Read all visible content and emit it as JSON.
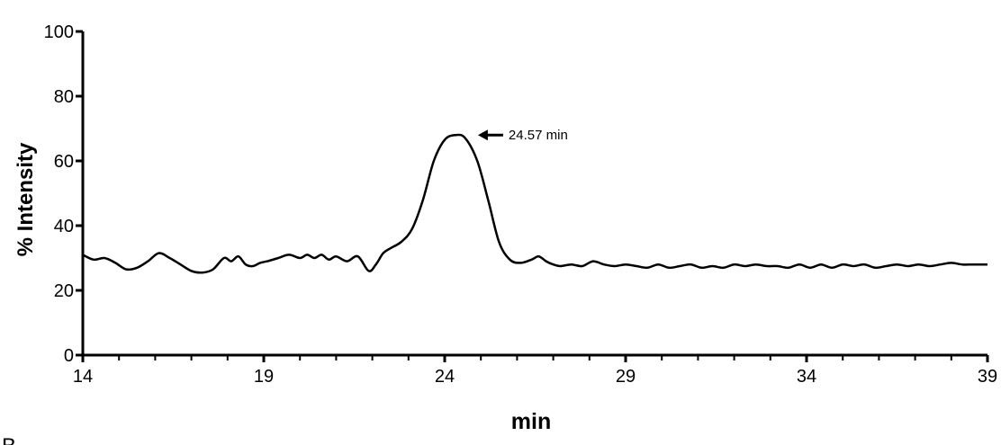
{
  "chart_data": {
    "type": "line",
    "title": "",
    "xlabel": "min",
    "ylabel": "% Intensity",
    "xlim": [
      14,
      39
    ],
    "ylim": [
      0,
      100
    ],
    "grid": false,
    "x_ticks_major": [
      14,
      19,
      24,
      29,
      34,
      39
    ],
    "x_ticks_minor_step": 1,
    "y_ticks": [
      0,
      20,
      40,
      60,
      80,
      100
    ],
    "annotation": {
      "text": "24.57 min",
      "x": 24.57,
      "y": 68
    },
    "series": [
      {
        "color": "#000000",
        "x": [
          14.0,
          14.3,
          14.6,
          14.9,
          15.2,
          15.5,
          15.8,
          16.1,
          16.4,
          16.7,
          17.0,
          17.3,
          17.6,
          17.9,
          18.1,
          18.3,
          18.5,
          18.7,
          18.9,
          19.1,
          19.4,
          19.7,
          20.0,
          20.2,
          20.4,
          20.6,
          20.8,
          21.0,
          21.3,
          21.6,
          21.9,
          22.1,
          22.3,
          22.5,
          22.8,
          23.1,
          23.4,
          23.7,
          24.0,
          24.3,
          24.57,
          24.9,
          25.2,
          25.5,
          25.8,
          26.1,
          26.4,
          26.6,
          26.8,
          27.0,
          27.2,
          27.5,
          27.8,
          28.1,
          28.4,
          28.7,
          29.0,
          29.3,
          29.6,
          29.9,
          30.2,
          30.5,
          30.8,
          31.1,
          31.4,
          31.7,
          32.0,
          32.3,
          32.6,
          32.9,
          33.2,
          33.5,
          33.8,
          34.1,
          34.4,
          34.7,
          35.0,
          35.3,
          35.6,
          35.9,
          36.2,
          36.5,
          36.8,
          37.1,
          37.4,
          37.7,
          38.0,
          38.3,
          38.6,
          39.0
        ],
        "values": [
          31,
          29.5,
          30,
          28.5,
          26.5,
          27,
          29,
          31.5,
          30,
          28,
          26,
          25.5,
          26.5,
          30,
          29,
          30.5,
          28,
          27.5,
          28.5,
          29,
          30,
          31,
          30,
          31,
          30,
          31,
          29.5,
          30.5,
          29,
          30.5,
          26,
          28,
          31.5,
          33,
          35,
          39,
          48,
          60,
          66.5,
          68,
          67,
          60,
          48,
          35,
          29.5,
          28.5,
          29.5,
          30.5,
          29,
          28,
          27.5,
          28,
          27.5,
          29,
          28,
          27.5,
          28,
          27.5,
          27,
          28,
          27,
          27.5,
          28,
          27,
          27.5,
          27,
          28,
          27.5,
          28,
          27.5,
          27.5,
          27,
          28,
          27,
          28,
          27,
          28,
          27.5,
          28,
          27,
          27.5,
          28,
          27.5,
          28,
          27.5,
          28,
          28.5,
          28,
          28,
          28
        ]
      }
    ]
  },
  "panel_label": "B"
}
